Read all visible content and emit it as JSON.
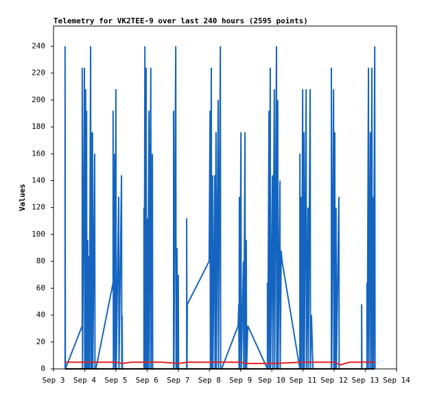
{
  "chart_data": {
    "type": "line",
    "title": "Telemetry for VK2TEE-9 over last 240 hours (2595 points)",
    "y_label": "Values",
    "xlim": [
      3,
      14
    ],
    "xticks": [
      {
        "value": 3,
        "label": "Sep 3"
      },
      {
        "value": 4,
        "label": "Sep 4"
      },
      {
        "value": 5,
        "label": "Sep 5"
      },
      {
        "value": 6,
        "label": "Sep 6"
      },
      {
        "value": 7,
        "label": "Sep 7"
      },
      {
        "value": 8,
        "label": "Sep 8"
      },
      {
        "value": 9,
        "label": "Sep 9"
      },
      {
        "value": 10,
        "label": "Sep 10"
      },
      {
        "value": 11,
        "label": "Sep 11"
      },
      {
        "value": 12,
        "label": "Sep 12"
      },
      {
        "value": 13,
        "label": "Sep 13"
      },
      {
        "value": 14,
        "label": "Sep 14"
      }
    ],
    "ylim": [
      0,
      255
    ],
    "yticks": [
      0,
      20,
      40,
      60,
      80,
      100,
      120,
      140,
      160,
      180,
      200,
      220,
      240
    ],
    "grid": false,
    "series": [
      {
        "color": "#1565c0",
        "x": [
          3.37,
          3.37,
          3.38,
          3.92,
          3.92,
          3.93,
          3.99,
          4.0,
          4.03,
          4.04,
          4.06,
          4.07,
          4.1,
          4.11,
          4.14,
          4.15,
          4.19,
          4.2,
          4.21,
          4.22,
          4.25,
          4.26,
          4.32,
          4.33,
          4.36,
          4.91,
          4.91,
          4.92,
          4.96,
          4.97,
          5.0,
          5.01,
          5.09,
          5.1,
          5.18,
          5.19,
          5.2,
          5.21,
          5.9,
          5.9,
          5.91,
          5.93,
          5.94,
          5.97,
          5.98,
          6.01,
          6.02,
          6.06,
          6.07,
          6.12,
          6.13,
          6.17,
          6.18,
          6.21,
          6.85,
          6.85,
          6.86,
          6.92,
          6.93,
          6.96,
          6.97,
          7.0,
          7.01,
          7.05,
          7.27,
          7.27,
          7.28,
          7.29,
          7.99,
          8.02,
          8.03,
          8.06,
          8.07,
          8.1,
          8.11,
          8.17,
          8.18,
          8.21,
          8.22,
          8.28,
          8.29,
          8.35,
          8.36,
          8.39,
          8.92,
          8.94,
          8.95,
          8.96,
          8.97,
          9.01,
          9.02,
          9.09,
          9.1,
          9.14,
          9.15,
          9.18,
          9.19,
          9.23,
          9.86,
          9.86,
          9.87,
          9.91,
          9.92,
          9.95,
          9.96,
          10.02,
          10.03,
          10.08,
          10.09,
          10.15,
          10.16,
          10.19,
          10.2,
          10.26,
          10.27,
          10.3,
          10.33,
          10.9,
          10.9,
          10.91,
          10.94,
          10.95,
          10.99,
          11.0,
          11.03,
          11.04,
          11.1,
          11.11,
          11.16,
          11.17,
          11.23,
          11.24,
          11.27,
          11.32,
          11.91,
          11.91,
          11.92,
          11.98,
          11.99,
          12.02,
          12.03,
          12.06,
          12.07,
          12.15,
          12.16,
          12.2,
          12.88,
          12.88,
          12.89,
          12.92,
          13.05,
          13.05,
          13.06,
          13.1,
          13.11,
          13.16,
          13.17,
          13.21,
          13.22,
          13.25,
          13.26,
          13.3,
          13.31,
          13.32
        ],
        "values": [
          0,
          240,
          0,
          32,
          224,
          0,
          224,
          0,
          208,
          0,
          192,
          0,
          96,
          0,
          84,
          0,
          240,
          0,
          176,
          0,
          176,
          0,
          160,
          0,
          0,
          64,
          192,
          0,
          160,
          0,
          208,
          0,
          128,
          0,
          144,
          0,
          40,
          0,
          0,
          120,
          0,
          240,
          0,
          224,
          0,
          112,
          0,
          192,
          0,
          224,
          0,
          160,
          0,
          0,
          0,
          192,
          0,
          240,
          0,
          90,
          0,
          70,
          0,
          0,
          0,
          112,
          0,
          48,
          80,
          192,
          0,
          224,
          0,
          144,
          0,
          144,
          0,
          176,
          0,
          200,
          0,
          240,
          0,
          0,
          32,
          48,
          0,
          128,
          0,
          176,
          0,
          80,
          0,
          176,
          0,
          96,
          0,
          32,
          0,
          64,
          0,
          192,
          0,
          224,
          0,
          144,
          0,
          208,
          0,
          240,
          0,
          200,
          0,
          140,
          0,
          88,
          80,
          0,
          160,
          0,
          128,
          0,
          208,
          0,
          176,
          0,
          208,
          0,
          120,
          0,
          208,
          0,
          40,
          0,
          0,
          224,
          0,
          208,
          0,
          176,
          0,
          120,
          0,
          128,
          0,
          0,
          0,
          48,
          0,
          0,
          0,
          64,
          0,
          224,
          0,
          176,
          0,
          224,
          0,
          128,
          0,
          240,
          0,
          0
        ]
      },
      {
        "color": "#e02020",
        "x": [
          3.37,
          4.5,
          5.0,
          5.2,
          5.5,
          6.0,
          6.5,
          7.0,
          7.3,
          8.0,
          9.0,
          9.2,
          10.0,
          11.0,
          11.3,
          12.0,
          12.2,
          12.5,
          13.3
        ],
        "values": [
          5,
          5,
          5,
          4,
          5,
          5,
          5,
          4,
          5,
          5,
          5,
          4,
          4,
          5,
          5,
          5,
          3,
          5,
          5
        ]
      },
      {
        "color": "#000000",
        "x": [
          3.37,
          13.3
        ],
        "values": [
          0,
          0
        ]
      }
    ]
  }
}
